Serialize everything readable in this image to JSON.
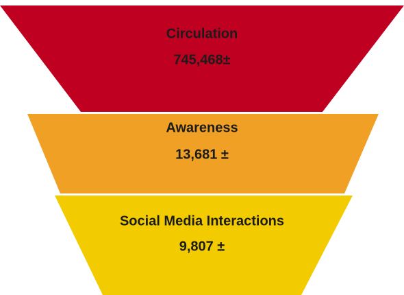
{
  "stages": [
    {
      "label": "Circulation",
      "value": "745,468±"
    },
    {
      "label": "Awareness",
      "value": "13,681 ±"
    },
    {
      "label": "Social Media Interactions",
      "value": "9,807 ±"
    }
  ]
}
